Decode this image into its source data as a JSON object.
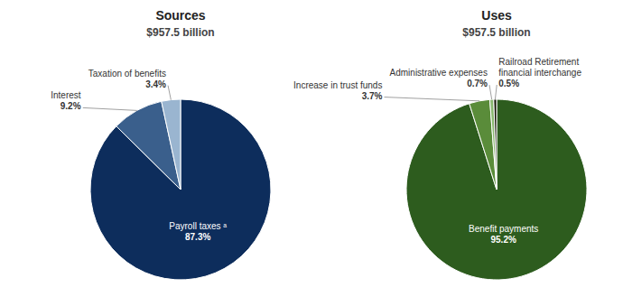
{
  "chart_data": [
    {
      "type": "pie",
      "title": "Sources",
      "subtitle": "$957.5 billion",
      "categories": [
        "Payroll taxes ᵃ",
        "Interest",
        "Taxation of benefits"
      ],
      "values": [
        87.3,
        9.2,
        3.4
      ],
      "value_labels": [
        "87.3%",
        "9.2%",
        "3.4%"
      ],
      "colors": [
        "#0d2d5c",
        "#3a5f8c",
        "#9ab5d0"
      ]
    },
    {
      "type": "pie",
      "title": "Uses",
      "subtitle": "$957.5 billion",
      "categories": [
        "Benefit payments",
        "Increase in trust funds",
        "Administrative expenses",
        "Railroad Retirement financial interchange"
      ],
      "values": [
        95.2,
        3.7,
        0.7,
        0.5
      ],
      "value_labels": [
        "95.2%",
        "3.7%",
        "0.7%",
        "0.5%"
      ],
      "colors": [
        "#2d5c1e",
        "#5a8c3a",
        "#8ab870",
        "#111100"
      ]
    }
  ]
}
